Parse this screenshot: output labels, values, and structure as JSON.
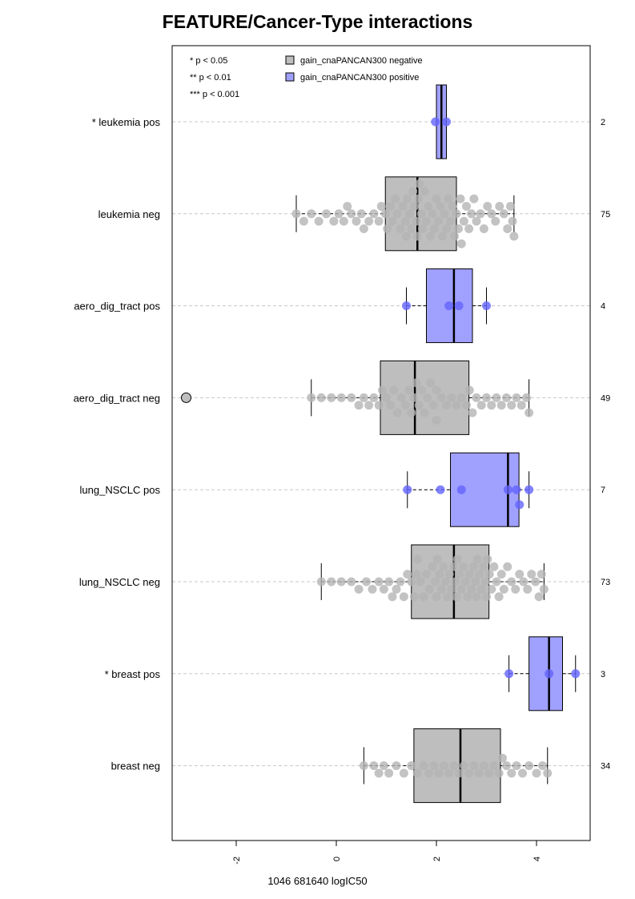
{
  "chart_data": {
    "type": "box",
    "title": "FEATURE/Cancer-Type interactions",
    "xlabel": "1046 681640 logIC50",
    "ylabel": "",
    "xlim": [
      -3.3,
      5.0
    ],
    "xticks": [
      -2,
      0,
      2,
      4
    ],
    "xtick_labels": [
      "-2",
      "0",
      "2",
      "4"
    ],
    "grid": "dashed horizontal line per group",
    "significance_legend": [
      "* p < 0.05",
      "** p < 0.01",
      "*** p < 0.001"
    ],
    "legend": [
      {
        "label": "gain_cnaPANCAN300 negative",
        "color": "#bebebe"
      },
      {
        "label": "gain_cnaPANCAN300 positive",
        "color": "#a0a0ff"
      }
    ],
    "colors": {
      "negative_box": "#bebebe",
      "positive_box": "#a0a0ff",
      "negative_point": "#b4b4b4",
      "positive_point": "#6464ff"
    },
    "groups": [
      {
        "label": "* leukemia pos",
        "status": "positive",
        "n": "2",
        "box": {
          "whisker_low": 2.0,
          "q1": 2.0,
          "median": 2.1,
          "q3": 2.2,
          "whisker_high": 2.2
        },
        "outliers": [],
        "points": [
          1.98,
          2.2
        ]
      },
      {
        "label": "leukemia neg",
        "status": "negative",
        "n": "75",
        "box": {
          "whisker_low": -0.8,
          "q1": 0.98,
          "median": 1.62,
          "q3": 2.4,
          "whisker_high": 3.55
        },
        "outliers": [],
        "points": [
          -0.8,
          -0.65,
          -0.5,
          -0.35,
          -0.2,
          -0.05,
          0.05,
          0.15,
          0.22,
          0.3,
          0.4,
          0.5,
          0.55,
          0.65,
          0.75,
          0.85,
          0.9,
          0.98,
          1.02,
          1.08,
          1.12,
          1.18,
          1.22,
          1.28,
          1.33,
          1.38,
          1.42,
          1.46,
          1.5,
          1.53,
          1.56,
          1.6,
          1.62,
          1.64,
          1.66,
          1.7,
          1.72,
          1.76,
          1.8,
          1.84,
          1.88,
          1.92,
          1.96,
          2.0,
          2.04,
          2.08,
          2.12,
          2.16,
          2.2,
          2.24,
          2.28,
          2.32,
          2.36,
          2.4,
          2.44,
          2.48,
          2.5,
          2.55,
          2.6,
          2.65,
          2.7,
          2.75,
          2.8,
          2.88,
          2.95,
          3.02,
          3.1,
          3.18,
          3.26,
          3.35,
          3.42,
          3.48,
          3.52,
          3.55,
          1.4
        ]
      },
      {
        "label": "aero_dig_tract pos",
        "status": "positive",
        "n": "4",
        "box": {
          "whisker_low": 1.4,
          "q1": 1.8,
          "median": 2.35,
          "q3": 2.72,
          "whisker_high": 3.0
        },
        "outliers": [],
        "points": [
          1.4,
          2.25,
          2.45,
          3.0
        ]
      },
      {
        "label": "aero_dig_tract neg",
        "status": "negative",
        "n": "49",
        "box": {
          "whisker_low": -0.5,
          "q1": 0.88,
          "median": 1.57,
          "q3": 2.65,
          "whisker_high": 3.85
        },
        "outliers": [
          -3.0
        ],
        "points": [
          -0.5,
          -0.3,
          -0.1,
          0.1,
          0.3,
          0.45,
          0.55,
          0.65,
          0.75,
          0.85,
          0.92,
          1.0,
          1.08,
          1.15,
          1.22,
          1.3,
          1.38,
          1.45,
          1.5,
          1.55,
          1.6,
          1.65,
          1.7,
          1.76,
          1.82,
          1.88,
          1.94,
          2.0,
          2.1,
          2.2,
          2.3,
          2.4,
          2.5,
          2.6,
          2.66,
          2.72,
          2.8,
          2.9,
          3.0,
          3.1,
          3.2,
          3.3,
          3.4,
          3.5,
          3.6,
          3.7,
          3.8,
          3.85,
          2.0
        ]
      },
      {
        "label": "lung_NSCLC pos",
        "status": "positive",
        "n": "7",
        "box": {
          "whisker_low": 1.42,
          "q1": 2.28,
          "median": 3.43,
          "q3": 3.65,
          "whisker_high": 3.85
        },
        "outliers": [],
        "points": [
          1.42,
          2.08,
          2.5,
          3.43,
          3.6,
          3.66,
          3.85
        ]
      },
      {
        "label": "lung_NSCLC neg",
        "status": "negative",
        "n": "73",
        "box": {
          "whisker_low": -0.3,
          "q1": 1.5,
          "median": 2.35,
          "q3": 3.05,
          "whisker_high": 4.15
        },
        "outliers": [],
        "points": [
          -0.3,
          -0.1,
          0.1,
          0.3,
          0.45,
          0.6,
          0.72,
          0.85,
          0.95,
          1.05,
          1.12,
          1.2,
          1.28,
          1.35,
          1.42,
          1.5,
          1.56,
          1.62,
          1.68,
          1.74,
          1.8,
          1.86,
          1.92,
          1.98,
          2.02,
          2.06,
          2.1,
          2.14,
          2.18,
          2.22,
          2.26,
          2.3,
          2.34,
          2.38,
          2.42,
          2.46,
          2.5,
          2.54,
          2.58,
          2.62,
          2.66,
          2.7,
          2.74,
          2.78,
          2.82,
          2.86,
          2.9,
          2.94,
          2.98,
          3.02,
          3.06,
          3.1,
          3.15,
          3.2,
          3.25,
          3.3,
          3.35,
          3.42,
          3.5,
          3.58,
          3.66,
          3.74,
          3.82,
          3.9,
          3.98,
          4.05,
          4.1,
          4.15,
          1.6,
          2.0,
          2.4,
          2.8,
          3.0
        ]
      },
      {
        "label": "* breast pos",
        "status": "positive",
        "n": "3",
        "box": {
          "whisker_low": 3.45,
          "q1": 3.85,
          "median": 4.25,
          "q3": 4.52,
          "whisker_high": 4.78
        },
        "outliers": [],
        "points": [
          3.45,
          4.25,
          4.78
        ]
      },
      {
        "label": "breast neg",
        "status": "negative",
        "n": "34",
        "box": {
          "whisker_low": 0.55,
          "q1": 1.55,
          "median": 2.48,
          "q3": 3.28,
          "whisker_high": 4.22
        },
        "outliers": [],
        "points": [
          0.55,
          0.75,
          0.85,
          0.95,
          1.05,
          1.2,
          1.35,
          1.5,
          1.62,
          1.75,
          1.85,
          1.95,
          2.05,
          2.15,
          2.25,
          2.35,
          2.45,
          2.55,
          2.65,
          2.75,
          2.85,
          2.95,
          3.05,
          3.15,
          3.25,
          3.32,
          3.4,
          3.5,
          3.6,
          3.72,
          3.85,
          4.0,
          4.12,
          4.22
        ]
      }
    ]
  }
}
